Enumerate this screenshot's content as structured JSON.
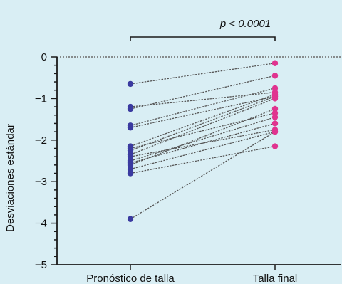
{
  "chart_data": {
    "type": "scatter",
    "ylabel": "Desviaciones estándar",
    "categories": [
      "Pronóstico de talla",
      "Talla final"
    ],
    "yticks": [
      0,
      -1,
      -2,
      -3,
      -4,
      -5
    ],
    "ytick_labels": [
      "0",
      "−1",
      "−2",
      "−3",
      "−4",
      "−5"
    ],
    "ylim": [
      -5,
      0
    ],
    "reference_line_y": 0,
    "significance_label": "p < 0.0001",
    "series": [
      {
        "values": [
          -0.65,
          -0.15
        ]
      },
      {
        "values": [
          -1.25,
          -0.45
        ]
      },
      {
        "values": [
          -1.2,
          -0.85
        ]
      },
      {
        "values": [
          -1.65,
          -0.75
        ]
      },
      {
        "values": [
          -1.7,
          -0.95
        ]
      },
      {
        "values": [
          -2.15,
          -0.9
        ]
      },
      {
        "values": [
          -2.2,
          -1.35
        ]
      },
      {
        "values": [
          -2.25,
          -0.95
        ]
      },
      {
        "values": [
          -2.35,
          -1.0
        ]
      },
      {
        "values": [
          -2.5,
          -1.45
        ]
      },
      {
        "values": [
          -2.4,
          -1.75
        ]
      },
      {
        "values": [
          -2.55,
          -1.6
        ]
      },
      {
        "values": [
          -2.6,
          -1.25
        ]
      },
      {
        "values": [
          -2.7,
          -1.8
        ]
      },
      {
        "values": [
          -2.8,
          -2.15
        ]
      },
      {
        "values": [
          -3.9,
          -1.8
        ]
      }
    ],
    "colors": {
      "left_points": "#3a3aa0",
      "right_points": "#e0338f",
      "lines": "#555555"
    }
  }
}
